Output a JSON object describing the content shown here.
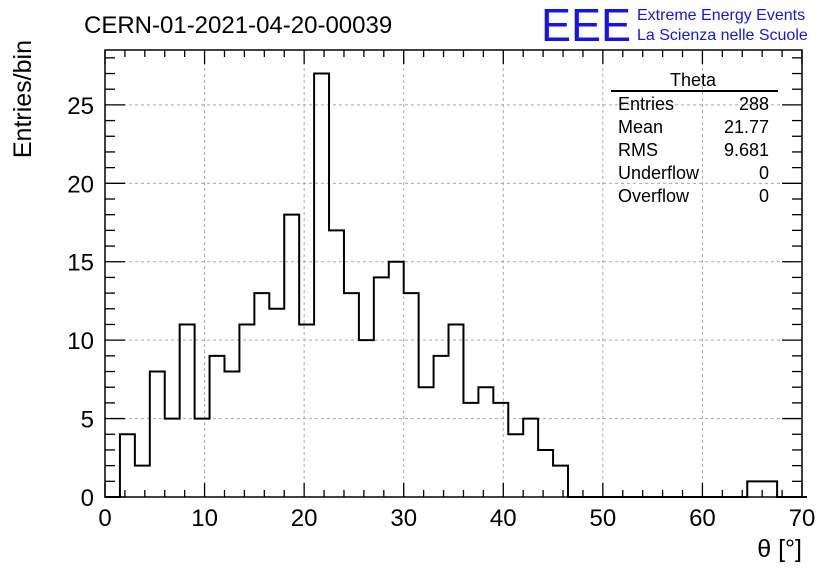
{
  "header": {
    "run_title": "CERN-01-2021-04-20-00039",
    "logo_text": "EEE",
    "logo_line1": "Extreme Energy Events",
    "logo_line2": "La Scienza nelle Scuole",
    "logo_color": "#1515e6"
  },
  "stats": {
    "title": "Theta",
    "rows": [
      {
        "label": "Entries",
        "value": "288"
      },
      {
        "label": "Mean",
        "value": "21.77"
      },
      {
        "label": "RMS",
        "value": "9.681"
      },
      {
        "label": "Underflow",
        "value": "0"
      },
      {
        "label": "Overflow",
        "value": "0"
      }
    ]
  },
  "chart_data": {
    "type": "histogram",
    "xlabel": "θ [°]",
    "ylabel": "Entries/bin",
    "xlim": [
      0,
      70
    ],
    "ylim": [
      0,
      28.5
    ],
    "xticks": [
      0,
      10,
      20,
      30,
      40,
      50,
      60,
      70
    ],
    "yticks": [
      0,
      5,
      10,
      15,
      20,
      25
    ],
    "grid": true,
    "bin_width": 1.5,
    "bin_start": 0,
    "counts": [
      0,
      4,
      2,
      8,
      5,
      11,
      5,
      9,
      8,
      11,
      13,
      12,
      18,
      11,
      27,
      17,
      13,
      10,
      14,
      15,
      13,
      7,
      9,
      11,
      6,
      7,
      6,
      4,
      5,
      3,
      2,
      0,
      0,
      0,
      0,
      0,
      0,
      0,
      0,
      0,
      0,
      0,
      0,
      1,
      1,
      0,
      0
    ]
  }
}
